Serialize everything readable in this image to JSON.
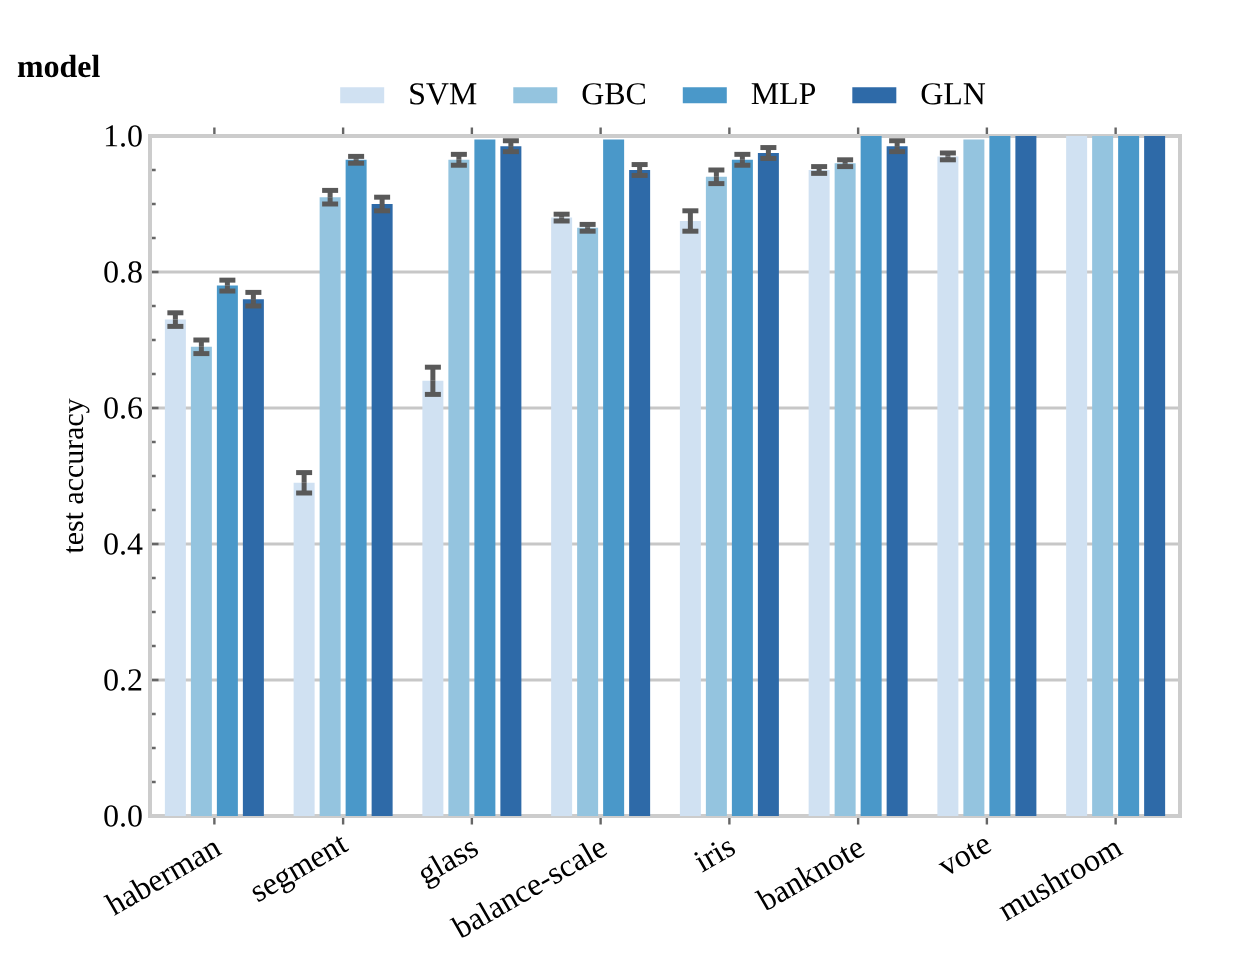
{
  "chart_data": {
    "type": "bar",
    "ylabel": "test accuracy",
    "legend_title": "model",
    "legend": "top",
    "grid": "y",
    "categories": [
      "haberman",
      "segment",
      "glass",
      "balance-scale",
      "iris",
      "banknote",
      "vote",
      "mushroom"
    ],
    "ylim": [
      0,
      1
    ],
    "yticks": [
      {
        "value": 0,
        "label": "0.0"
      },
      {
        "value": 0.2,
        "label": "0.2"
      },
      {
        "value": 0.4,
        "label": "0.4"
      },
      {
        "value": 0.6,
        "label": "0.6"
      },
      {
        "value": 0.8,
        "label": "0.8"
      },
      {
        "value": 1,
        "label": "1.0"
      }
    ],
    "series": [
      {
        "name": "SVM",
        "color": "#d0e1f2",
        "values": [
          0.73,
          0.49,
          0.64,
          0.88,
          0.875,
          0.95,
          0.97,
          1.0
        ],
        "errors": [
          0.01,
          0.015,
          0.02,
          0.005,
          0.015,
          0.005,
          0.005,
          null
        ]
      },
      {
        "name": "GBC",
        "color": "#94c4df",
        "values": [
          0.69,
          0.91,
          0.965,
          0.865,
          0.94,
          0.96,
          0.995,
          1.0
        ],
        "errors": [
          0.01,
          0.01,
          0.008,
          0.005,
          0.01,
          0.005,
          null,
          null
        ]
      },
      {
        "name": "MLP",
        "color": "#4a98c9",
        "values": [
          0.78,
          0.965,
          0.995,
          0.995,
          0.965,
          1.0,
          1.0,
          1.0
        ],
        "errors": [
          0.008,
          0.005,
          null,
          null,
          0.008,
          null,
          null,
          null
        ]
      },
      {
        "name": "GLN",
        "color": "#2e6aa8",
        "values": [
          0.76,
          0.9,
          0.985,
          0.95,
          0.975,
          0.985,
          1.0,
          1.0
        ],
        "errors": [
          0.01,
          0.01,
          0.008,
          0.008,
          0.008,
          0.008,
          null,
          null
        ]
      }
    ]
  }
}
